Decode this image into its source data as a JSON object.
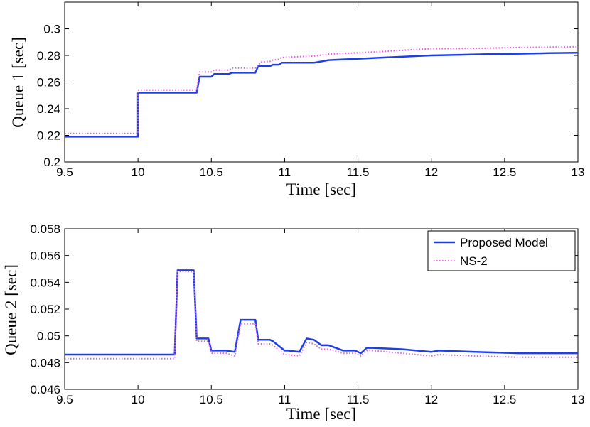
{
  "chart_data": [
    {
      "type": "line",
      "xlabel": "Time [sec]",
      "ylabel": "Queue 1 [sec]",
      "xlim": [
        9.5,
        13
      ],
      "ylim": [
        0.2,
        0.32
      ],
      "xticks": [
        9.5,
        10,
        10.5,
        11,
        11.5,
        12,
        12.5,
        13
      ],
      "xtick_labels": [
        "9.5",
        "10",
        "10.5",
        "11",
        "11.5",
        "12",
        "12.5",
        "13"
      ],
      "yticks": [
        0.2,
        0.22,
        0.24,
        0.26,
        0.28,
        0.3
      ],
      "ytick_labels": [
        "0.2",
        "0.22",
        "0.24",
        "0.26",
        "0.28",
        "0.3"
      ],
      "grid": false,
      "series": [
        {
          "name": "Proposed Model",
          "color": "#1f3fe6",
          "style": "solid",
          "x": [
            9.5,
            10.0,
            10.0,
            10.4,
            10.42,
            10.5,
            10.52,
            10.62,
            10.64,
            10.8,
            10.82,
            10.9,
            10.92,
            10.96,
            10.98,
            11.2,
            11.3,
            11.4,
            11.5,
            11.6,
            11.7,
            11.8,
            11.9,
            12.0,
            12.2,
            12.4,
            12.6,
            12.8,
            13.0
          ],
          "y": [
            0.219,
            0.219,
            0.252,
            0.252,
            0.264,
            0.264,
            0.266,
            0.266,
            0.267,
            0.267,
            0.272,
            0.272,
            0.273,
            0.273,
            0.2745,
            0.2745,
            0.2765,
            0.277,
            0.2775,
            0.278,
            0.2785,
            0.279,
            0.2795,
            0.28,
            0.2805,
            0.281,
            0.2813,
            0.2817,
            0.282
          ]
        },
        {
          "name": "NS-2",
          "color": "#d95fe0",
          "style": "dotted",
          "x": [
            9.5,
            10.0,
            10.0,
            10.4,
            10.42,
            10.5,
            10.52,
            10.62,
            10.64,
            10.8,
            10.84,
            10.9,
            10.92,
            10.96,
            10.98,
            11.2,
            11.3,
            11.4,
            11.5,
            11.6,
            11.7,
            11.8,
            11.9,
            12.0,
            12.2,
            12.4,
            12.6,
            12.8,
            13.0
          ],
          "y": [
            0.2215,
            0.2215,
            0.254,
            0.254,
            0.2675,
            0.2675,
            0.269,
            0.269,
            0.2705,
            0.2705,
            0.275,
            0.2755,
            0.2765,
            0.277,
            0.2785,
            0.2795,
            0.281,
            0.2815,
            0.282,
            0.2825,
            0.2832,
            0.2838,
            0.2845,
            0.285,
            0.2852,
            0.2855,
            0.286,
            0.2862,
            0.2865
          ]
        }
      ]
    },
    {
      "type": "line",
      "xlabel": "Time [sec]",
      "ylabel": "Queue 2 [sec]",
      "xlim": [
        9.5,
        13
      ],
      "ylim": [
        0.046,
        0.058
      ],
      "xticks": [
        9.5,
        10,
        10.5,
        11,
        11.5,
        12,
        12.5,
        13
      ],
      "xtick_labels": [
        "9.5",
        "10",
        "10.5",
        "11",
        "11.5",
        "12",
        "12.5",
        "13"
      ],
      "yticks": [
        0.046,
        0.048,
        0.05,
        0.052,
        0.054,
        0.056,
        0.058
      ],
      "ytick_labels": [
        "0.046",
        "0.048",
        "0.05",
        "0.052",
        "0.054",
        "0.056",
        "0.058"
      ],
      "grid": false,
      "legend_position": "top-right",
      "series": [
        {
          "name": "Proposed Model",
          "color": "#1f3fe6",
          "style": "solid",
          "x": [
            9.5,
            10.25,
            10.27,
            10.38,
            10.4,
            10.48,
            10.5,
            10.6,
            10.66,
            10.7,
            10.8,
            10.82,
            10.9,
            10.92,
            11.0,
            11.02,
            11.1,
            11.15,
            11.2,
            11.25,
            11.3,
            11.4,
            11.48,
            11.52,
            11.56,
            11.6,
            11.8,
            12.0,
            12.05,
            12.3,
            12.6,
            13.0
          ],
          "y": [
            0.0486,
            0.0486,
            0.0549,
            0.0549,
            0.0498,
            0.0498,
            0.0489,
            0.0489,
            0.0488,
            0.0512,
            0.0512,
            0.0497,
            0.0497,
            0.0496,
            0.0489,
            0.0489,
            0.0488,
            0.0498,
            0.0497,
            0.0493,
            0.0493,
            0.0489,
            0.0489,
            0.0487,
            0.0491,
            0.0491,
            0.049,
            0.0488,
            0.0489,
            0.0488,
            0.0487,
            0.0487
          ]
        },
        {
          "name": "NS-2",
          "color": "#d95fe0",
          "style": "dotted",
          "x": [
            9.5,
            10.25,
            10.27,
            10.38,
            10.4,
            10.48,
            10.5,
            10.6,
            10.66,
            10.7,
            10.8,
            10.82,
            10.9,
            10.92,
            11.0,
            11.02,
            11.1,
            11.15,
            11.2,
            11.25,
            11.3,
            11.4,
            11.48,
            11.52,
            11.56,
            11.6,
            11.8,
            12.0,
            12.05,
            12.3,
            12.6,
            13.0
          ],
          "y": [
            0.0483,
            0.0483,
            0.0548,
            0.0548,
            0.0496,
            0.0496,
            0.0487,
            0.0487,
            0.0485,
            0.0509,
            0.0509,
            0.0494,
            0.0494,
            0.0493,
            0.0486,
            0.0486,
            0.0485,
            0.0495,
            0.0494,
            0.049,
            0.049,
            0.0487,
            0.0487,
            0.0485,
            0.0489,
            0.0489,
            0.0487,
            0.0485,
            0.0486,
            0.0485,
            0.0484,
            0.0484
          ]
        }
      ]
    }
  ]
}
